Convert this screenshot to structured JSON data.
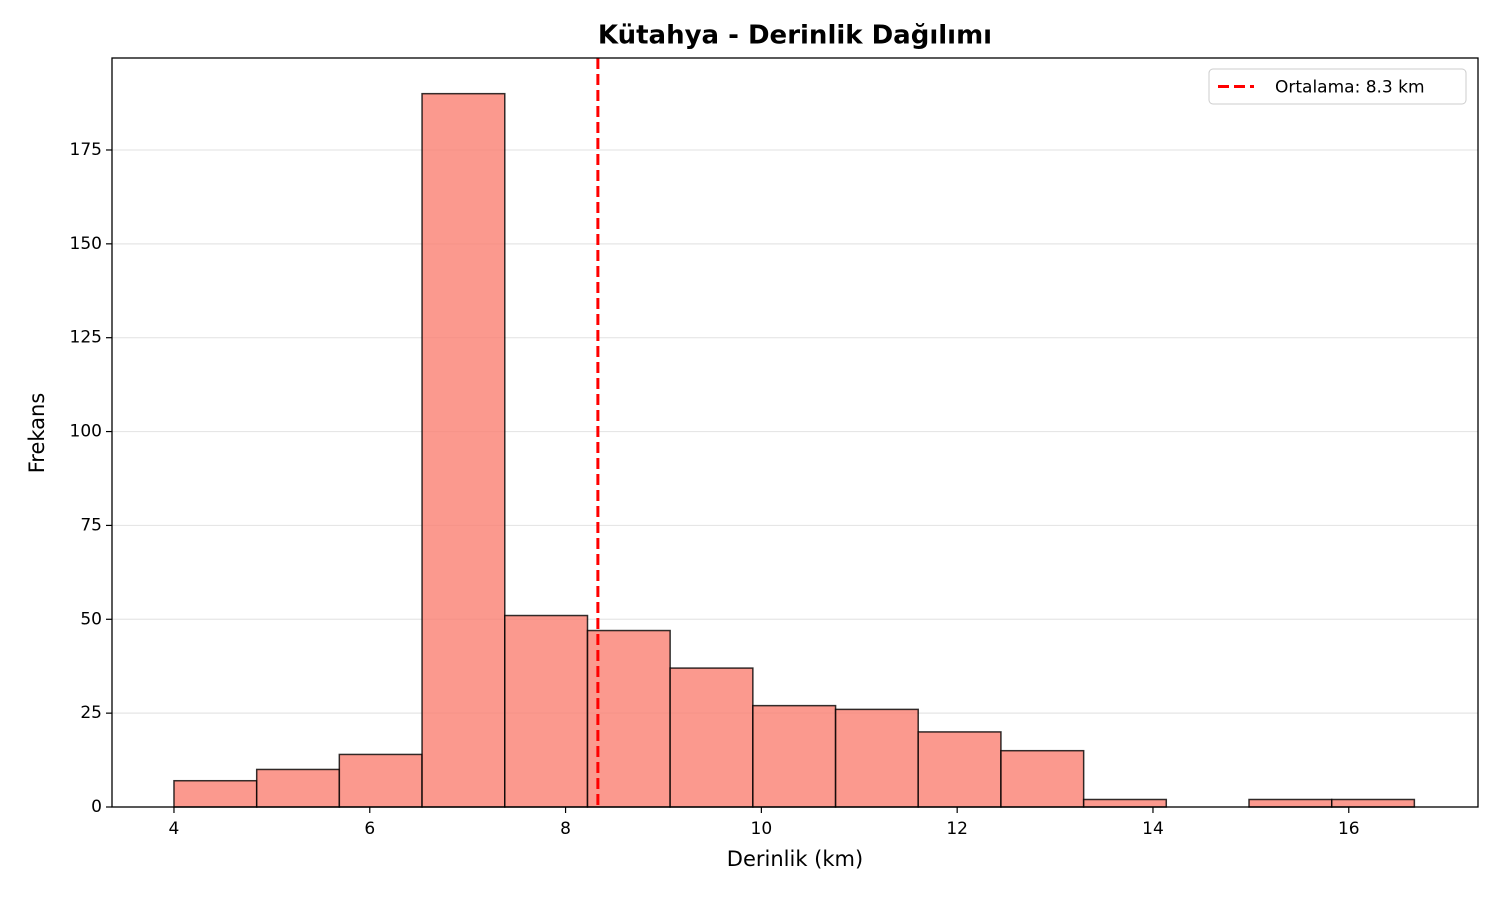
{
  "chart_data": {
    "type": "histogram",
    "title": "Kütahya - Derinlik Dağılımı",
    "x_label": "Derinlik (km)",
    "y_label": "Frekans",
    "bins": [
      4.0,
      4.845,
      5.689,
      6.534,
      7.379,
      8.224,
      9.068,
      9.913,
      10.758,
      11.602,
      12.447,
      13.292,
      14.136,
      14.981,
      15.826,
      16.67
    ],
    "values": [
      7,
      10,
      14,
      190,
      51,
      47,
      37,
      27,
      26,
      20,
      15,
      2,
      0,
      2,
      2
    ],
    "color": "#fa8072",
    "edge_color": "#000000",
    "xlim": [
      3.367,
      17.32
    ],
    "xticks": [
      4,
      6,
      8,
      10,
      12,
      14,
      16
    ],
    "ylim": [
      0,
      199.5
    ],
    "yticks": [
      0,
      25,
      50,
      75,
      100,
      125,
      150,
      175
    ],
    "grid": "y",
    "mean_line": {
      "value": 8.33,
      "label": "Ortalama: 8.3 km",
      "color": "#ff0000"
    },
    "legend_position": "upper right"
  }
}
